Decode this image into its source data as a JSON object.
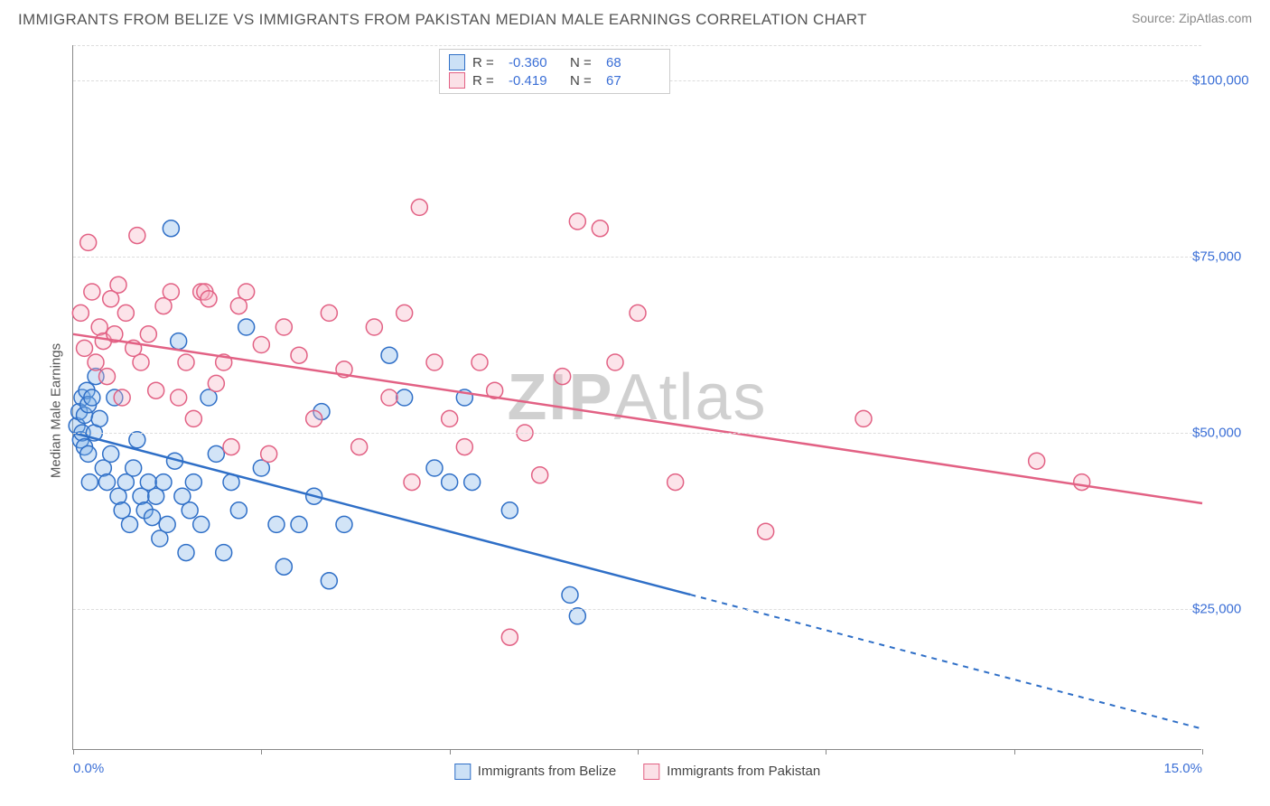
{
  "header": {
    "title": "IMMIGRANTS FROM BELIZE VS IMMIGRANTS FROM PAKISTAN MEDIAN MALE EARNINGS CORRELATION CHART",
    "source": "Source: ZipAtlas.com"
  },
  "watermark": {
    "part1": "ZIP",
    "part2": "Atlas"
  },
  "chart": {
    "type": "scatter",
    "y_label": "Median Male Earnings",
    "xlim": [
      0,
      15
    ],
    "ylim": [
      5000,
      105000
    ],
    "y_ticks": [
      25000,
      50000,
      75000,
      100000
    ],
    "y_tick_labels": [
      "$25,000",
      "$50,000",
      "$75,000",
      "$100,000"
    ],
    "x_tick_positions": [
      0,
      2.5,
      5,
      7.5,
      10,
      12.5,
      15
    ],
    "x_min_label": "0.0%",
    "x_max_label": "15.0%",
    "background_color": "#ffffff",
    "grid_color": "#dddddd",
    "axis_color": "#888888",
    "tick_label_color": "#3b6fd6",
    "marker_radius": 9,
    "marker_opacity": 0.35,
    "series": [
      {
        "name": "Immigrants from Belize",
        "color_fill": "#7fb3e8",
        "color_stroke": "#2f6fc7",
        "R": "-0.360",
        "N": "68",
        "regression": {
          "x1": 0,
          "y1": 50000,
          "x2": 15,
          "y2": 8000,
          "solid_until_x": 8.2
        },
        "points": [
          [
            0.05,
            51000
          ],
          [
            0.08,
            53000
          ],
          [
            0.1,
            49000
          ],
          [
            0.12,
            55000
          ],
          [
            0.12,
            50000
          ],
          [
            0.15,
            52500
          ],
          [
            0.15,
            48000
          ],
          [
            0.18,
            56000
          ],
          [
            0.2,
            54000
          ],
          [
            0.2,
            47000
          ],
          [
            0.22,
            43000
          ],
          [
            0.25,
            55000
          ],
          [
            0.28,
            50000
          ],
          [
            0.3,
            58000
          ],
          [
            0.35,
            52000
          ],
          [
            0.4,
            45000
          ],
          [
            0.45,
            43000
          ],
          [
            0.5,
            47000
          ],
          [
            0.55,
            55000
          ],
          [
            0.6,
            41000
          ],
          [
            0.65,
            39000
          ],
          [
            0.7,
            43000
          ],
          [
            0.75,
            37000
          ],
          [
            0.8,
            45000
          ],
          [
            0.85,
            49000
          ],
          [
            0.9,
            41000
          ],
          [
            0.95,
            39000
          ],
          [
            1.0,
            43000
          ],
          [
            1.05,
            38000
          ],
          [
            1.1,
            41000
          ],
          [
            1.15,
            35000
          ],
          [
            1.2,
            43000
          ],
          [
            1.25,
            37000
          ],
          [
            1.3,
            79000
          ],
          [
            1.35,
            46000
          ],
          [
            1.4,
            63000
          ],
          [
            1.45,
            41000
          ],
          [
            1.5,
            33000
          ],
          [
            1.55,
            39000
          ],
          [
            1.6,
            43000
          ],
          [
            1.7,
            37000
          ],
          [
            1.8,
            55000
          ],
          [
            1.9,
            47000
          ],
          [
            2.0,
            33000
          ],
          [
            2.1,
            43000
          ],
          [
            2.2,
            39000
          ],
          [
            2.3,
            65000
          ],
          [
            2.5,
            45000
          ],
          [
            2.7,
            37000
          ],
          [
            2.8,
            31000
          ],
          [
            3.0,
            37000
          ],
          [
            3.2,
            41000
          ],
          [
            3.3,
            53000
          ],
          [
            3.4,
            29000
          ],
          [
            3.6,
            37000
          ],
          [
            4.2,
            61000
          ],
          [
            4.4,
            55000
          ],
          [
            4.8,
            45000
          ],
          [
            5.0,
            43000
          ],
          [
            5.2,
            55000
          ],
          [
            5.3,
            43000
          ],
          [
            5.8,
            39000
          ],
          [
            6.6,
            27000
          ],
          [
            6.7,
            24000
          ]
        ]
      },
      {
        "name": "Immigrants from Pakistan",
        "color_fill": "#f5b3c3",
        "color_stroke": "#e26184",
        "R": "-0.419",
        "N": "67",
        "regression": {
          "x1": 0,
          "y1": 64000,
          "x2": 15,
          "y2": 40000,
          "solid_until_x": 15
        },
        "points": [
          [
            0.1,
            67000
          ],
          [
            0.15,
            62000
          ],
          [
            0.2,
            77000
          ],
          [
            0.25,
            70000
          ],
          [
            0.3,
            60000
          ],
          [
            0.35,
            65000
          ],
          [
            0.4,
            63000
          ],
          [
            0.45,
            58000
          ],
          [
            0.5,
            69000
          ],
          [
            0.55,
            64000
          ],
          [
            0.6,
            71000
          ],
          [
            0.65,
            55000
          ],
          [
            0.7,
            67000
          ],
          [
            0.8,
            62000
          ],
          [
            0.85,
            78000
          ],
          [
            0.9,
            60000
          ],
          [
            1.0,
            64000
          ],
          [
            1.1,
            56000
          ],
          [
            1.2,
            68000
          ],
          [
            1.3,
            70000
          ],
          [
            1.4,
            55000
          ],
          [
            1.5,
            60000
          ],
          [
            1.6,
            52000
          ],
          [
            1.7,
            70000
          ],
          [
            1.75,
            70000
          ],
          [
            1.8,
            69000
          ],
          [
            1.9,
            57000
          ],
          [
            2.0,
            60000
          ],
          [
            2.1,
            48000
          ],
          [
            2.2,
            68000
          ],
          [
            2.3,
            70000
          ],
          [
            2.5,
            62500
          ],
          [
            2.6,
            47000
          ],
          [
            2.8,
            65000
          ],
          [
            3.0,
            61000
          ],
          [
            3.2,
            52000
          ],
          [
            3.4,
            67000
          ],
          [
            3.6,
            59000
          ],
          [
            3.8,
            48000
          ],
          [
            4.0,
            65000
          ],
          [
            4.2,
            55000
          ],
          [
            4.4,
            67000
          ],
          [
            4.5,
            43000
          ],
          [
            4.6,
            82000
          ],
          [
            4.8,
            60000
          ],
          [
            5.0,
            52000
          ],
          [
            5.2,
            48000
          ],
          [
            5.4,
            60000
          ],
          [
            5.6,
            56000
          ],
          [
            5.8,
            21000
          ],
          [
            6.0,
            50000
          ],
          [
            6.2,
            44000
          ],
          [
            6.5,
            58000
          ],
          [
            6.7,
            80000
          ],
          [
            7.0,
            79000
          ],
          [
            7.2,
            60000
          ],
          [
            7.5,
            67000
          ],
          [
            8.0,
            43000
          ],
          [
            9.2,
            36000
          ],
          [
            10.5,
            52000
          ],
          [
            12.8,
            46000
          ],
          [
            13.4,
            43000
          ]
        ]
      }
    ]
  },
  "legend_top": {
    "r_label": "R =",
    "n_label": "N ="
  }
}
